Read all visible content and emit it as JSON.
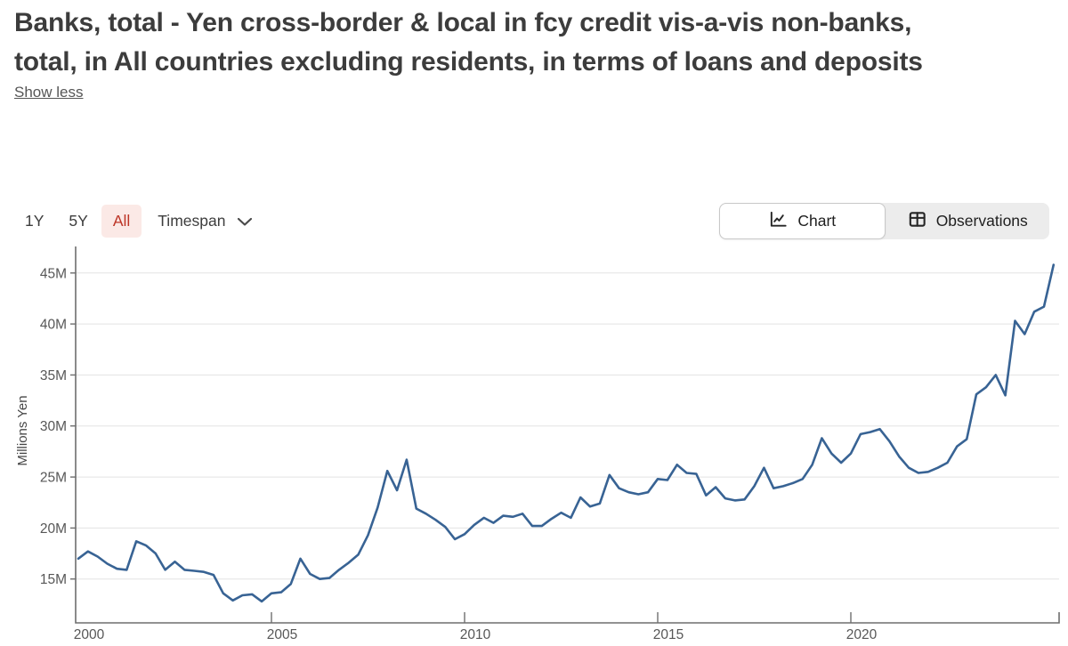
{
  "header": {
    "title_lines": [
      "Banks, total - Yen cross-border & local in fcy credit vis-a-vis non-banks,",
      "total, in All countries excluding residents, in terms of loans and deposits"
    ],
    "show_less_label": "Show less"
  },
  "toolbar": {
    "ranges": [
      {
        "label": "1Y",
        "active": false
      },
      {
        "label": "5Y",
        "active": false
      },
      {
        "label": "All",
        "active": true
      }
    ],
    "active_range_style": {
      "text_color": "#bd3527",
      "background": "#fbe9e6"
    },
    "timespan_label": "Timespan",
    "timespan_icon": "chevron-down-icon",
    "view_toggle": [
      {
        "label": "Chart",
        "icon": "line-chart-icon",
        "active": true
      },
      {
        "label": "Observations",
        "icon": "table-icon",
        "active": false
      }
    ]
  },
  "chart_data": {
    "type": "line",
    "ylabel": "Millions Yen",
    "x_start": 2000,
    "x_step": 0.25,
    "x_ticks": [
      2000,
      2005,
      2010,
      2015,
      2020
    ],
    "y_ticks": [
      "15M",
      "20M",
      "25M",
      "30M",
      "35M",
      "40M",
      "45M"
    ],
    "y_tick_values": [
      15,
      20,
      25,
      30,
      35,
      40,
      45
    ],
    "ylim": [
      10.8,
      46.9
    ],
    "xlim": [
      1999.9,
      2025.4
    ],
    "grid": "horizontal",
    "legend": "none",
    "line_color": "#386394",
    "values": [
      17.0,
      17.7,
      17.2,
      16.5,
      16.0,
      15.9,
      18.7,
      18.3,
      17.5,
      15.9,
      16.7,
      15.9,
      15.8,
      15.7,
      15.4,
      13.6,
      12.9,
      13.4,
      13.5,
      12.8,
      13.6,
      13.7,
      14.5,
      17.0,
      15.5,
      15.0,
      15.1,
      15.9,
      16.6,
      17.4,
      19.3,
      22.0,
      25.6,
      23.7,
      26.7,
      21.9,
      21.4,
      20.8,
      20.1,
      18.9,
      19.4,
      20.3,
      21.0,
      20.5,
      21.2,
      21.1,
      21.4,
      20.2,
      20.2,
      20.9,
      21.5,
      21.0,
      23.0,
      22.1,
      22.4,
      25.2,
      23.9,
      23.5,
      23.3,
      23.5,
      24.8,
      24.7,
      26.2,
      25.4,
      25.3,
      23.2,
      24.0,
      22.9,
      22.7,
      22.8,
      24.1,
      25.9,
      23.9,
      24.1,
      24.4,
      24.8,
      26.2,
      28.8,
      27.3,
      26.4,
      27.3,
      29.2,
      29.4,
      29.7,
      28.5,
      27.0,
      25.9,
      25.4,
      25.5,
      25.9,
      26.4,
      28.0,
      28.7,
      33.1,
      33.8,
      35.0,
      33.0,
      40.3,
      39.0,
      41.2,
      41.7,
      45.8
    ]
  }
}
